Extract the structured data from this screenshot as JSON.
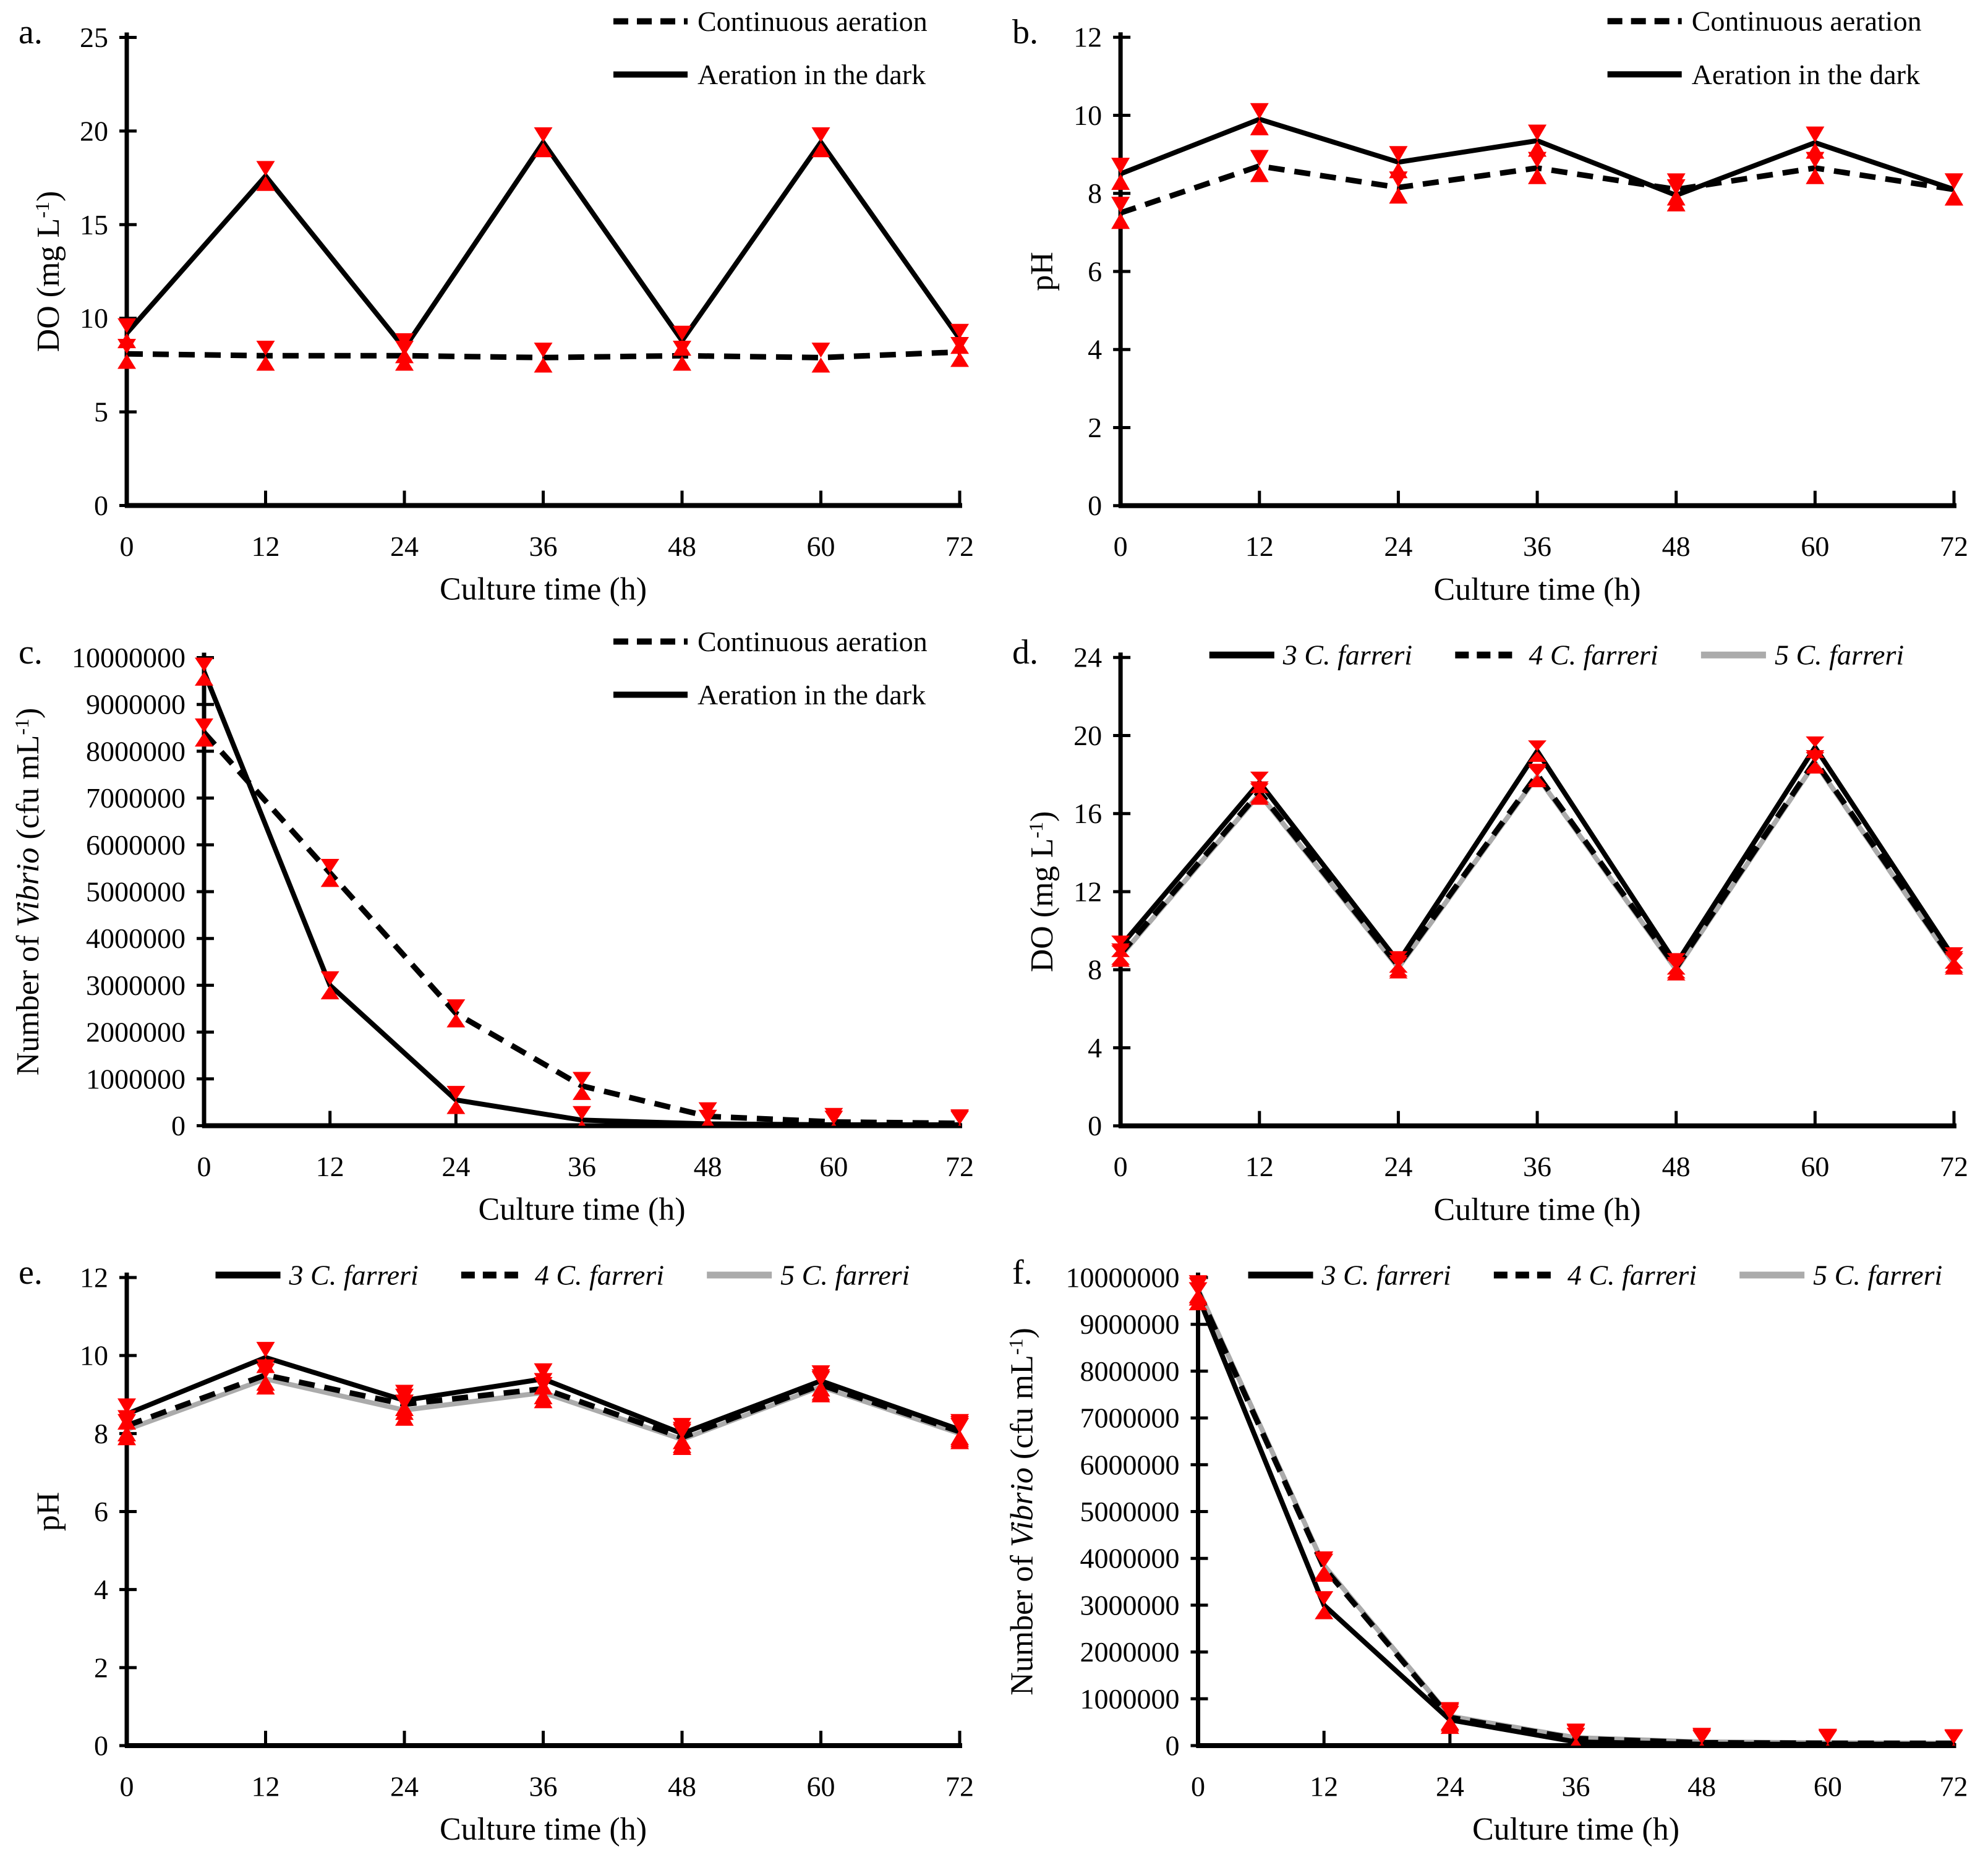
{
  "figure": {
    "background": "#ffffff",
    "axis_color": "#000000",
    "error_marker_color": "#fe0000",
    "gray_series_color": "#ababab"
  },
  "chart_data": [
    {
      "panel_label": "a.",
      "type": "line",
      "xlabel": "Culture time (h)",
      "ylabel_segments": [
        {
          "text": "DO (mg L"
        },
        {
          "text": "-1",
          "sup": true
        },
        {
          "text": ")"
        }
      ],
      "x": [
        0,
        12,
        24,
        36,
        48,
        60,
        72
      ],
      "xlim": [
        0,
        72
      ],
      "xticks": [
        0,
        12,
        24,
        36,
        48,
        60,
        72
      ],
      "ylim": [
        0,
        25
      ],
      "yticks": [
        0,
        5,
        10,
        15,
        20,
        25
      ],
      "legend": {
        "layout": "vertical"
      },
      "error_marker_color": "#fe0000",
      "series": [
        {
          "name": "Continuous aeration",
          "dash": "dashed",
          "color": "#000000",
          "italic": false,
          "err": 0.8,
          "values": [
            8.1,
            8.0,
            8.0,
            7.9,
            8.0,
            7.9,
            8.2
          ]
        },
        {
          "name": "Aeration in the dark",
          "dash": "solid",
          "color": "#000000",
          "italic": false,
          "err": 0.8,
          "values": [
            9.2,
            17.6,
            8.4,
            19.4,
            8.8,
            19.4,
            8.9
          ]
        }
      ]
    },
    {
      "panel_label": "b.",
      "type": "line",
      "xlabel": "Culture time (h)",
      "ylabel_segments": [
        {
          "text": "pH"
        }
      ],
      "x": [
        0,
        12,
        24,
        36,
        48,
        60,
        72
      ],
      "xlim": [
        0,
        72
      ],
      "xticks": [
        0,
        12,
        24,
        36,
        48,
        60,
        72
      ],
      "ylim": [
        0,
        12
      ],
      "yticks": [
        0,
        2,
        4,
        6,
        8,
        10,
        12
      ],
      "legend": {
        "layout": "vertical"
      },
      "error_marker_color": "#fe0000",
      "series": [
        {
          "name": "Continuous aeration",
          "dash": "dashed",
          "color": "#000000",
          "italic": false,
          "err": 0.45,
          "values": [
            7.5,
            8.7,
            8.15,
            8.65,
            8.1,
            8.65,
            8.1
          ]
        },
        {
          "name": "Aeration in the dark",
          "dash": "solid",
          "color": "#000000",
          "italic": false,
          "err": 0.45,
          "values": [
            8.5,
            9.9,
            8.8,
            9.35,
            7.95,
            9.3,
            8.1
          ]
        }
      ]
    },
    {
      "panel_label": "c.",
      "type": "line",
      "xlabel": "Culture time (h)",
      "ylabel_segments": [
        {
          "text": "Number of "
        },
        {
          "text": "Vibrio",
          "italic": true
        },
        {
          "text": " (cfu mL"
        },
        {
          "text": "-1",
          "sup": true
        },
        {
          "text": ")"
        }
      ],
      "x": [
        0,
        12,
        24,
        36,
        48,
        60,
        72
      ],
      "xlim": [
        0,
        72
      ],
      "xticks": [
        0,
        12,
        24,
        36,
        48,
        60,
        72
      ],
      "ylim": [
        0,
        10000000
      ],
      "yticks": [
        0,
        1000000,
        2000000,
        3000000,
        4000000,
        5000000,
        6000000,
        7000000,
        8000000,
        9000000,
        10000000
      ],
      "legend": {
        "layout": "vertical"
      },
      "error_marker_color": "#fe0000",
      "series": [
        {
          "name": "Continuous aeration",
          "dash": "dashed",
          "color": "#000000",
          "italic": false,
          "err": 300000,
          "values": [
            8400000,
            5400000,
            2400000,
            850000,
            200000,
            80000,
            50000
          ]
        },
        {
          "name": "Aeration in the dark",
          "dash": "solid",
          "color": "#000000",
          "italic": false,
          "err": 300000,
          "values": [
            9700000,
            3000000,
            550000,
            120000,
            40000,
            20000,
            20000
          ]
        }
      ]
    },
    {
      "panel_label": "d.",
      "type": "line",
      "xlabel": "Culture time (h)",
      "ylabel_segments": [
        {
          "text": "DO (mg L"
        },
        {
          "text": "-1",
          "sup": true
        },
        {
          "text": ")"
        }
      ],
      "x": [
        0,
        12,
        24,
        36,
        48,
        60,
        72
      ],
      "xlim": [
        0,
        72
      ],
      "xticks": [
        0,
        12,
        24,
        36,
        48,
        60,
        72
      ],
      "ylim": [
        0,
        24
      ],
      "yticks": [
        0,
        4,
        8,
        12,
        16,
        20,
        24
      ],
      "legend": {
        "layout": "horizontal"
      },
      "error_marker_color": "#fe0000",
      "series": [
        {
          "name": "3 C. farreri",
          "dash": "solid",
          "color": "#000000",
          "italic": true,
          "err": 0.55,
          "values": [
            9.2,
            17.6,
            8.4,
            19.2,
            8.3,
            19.4,
            8.6
          ]
        },
        {
          "name": "4 C. farreri",
          "dash": "dashed",
          "color": "#000000",
          "italic": true,
          "err": 0.55,
          "values": [
            8.8,
            17.1,
            8.2,
            18.0,
            8.1,
            18.7,
            8.4
          ]
        },
        {
          "name": "5 C. farreri",
          "dash": "solid",
          "color": "#ababab",
          "italic": true,
          "err": 0.55,
          "values": [
            8.7,
            17.0,
            8.1,
            17.9,
            8.0,
            18.6,
            8.3
          ]
        }
      ]
    },
    {
      "panel_label": "e.",
      "type": "line",
      "xlabel": "Culture time (h)",
      "ylabel_segments": [
        {
          "text": "pH"
        }
      ],
      "x": [
        0,
        12,
        24,
        36,
        48,
        60,
        72
      ],
      "xlim": [
        0,
        72
      ],
      "xticks": [
        0,
        12,
        24,
        36,
        48,
        60,
        72
      ],
      "ylim": [
        0,
        12
      ],
      "yticks": [
        0,
        2,
        4,
        6,
        8,
        10,
        12
      ],
      "legend": {
        "layout": "horizontal"
      },
      "error_marker_color": "#fe0000",
      "series": [
        {
          "name": "3 C. farreri",
          "dash": "solid",
          "color": "#000000",
          "italic": true,
          "err": 0.4,
          "values": [
            8.5,
            9.95,
            8.85,
            9.4,
            8.0,
            9.35,
            8.1
          ]
        },
        {
          "name": "4 C. farreri",
          "dash": "dashed",
          "color": "#000000",
          "italic": true,
          "err": 0.4,
          "values": [
            8.2,
            9.5,
            8.75,
            9.15,
            7.9,
            9.25,
            8.05
          ]
        },
        {
          "name": "5 C. farreri",
          "dash": "solid",
          "color": "#ababab",
          "italic": true,
          "err": 0.4,
          "values": [
            8.1,
            9.4,
            8.6,
            9.05,
            7.85,
            9.2,
            8.0
          ]
        }
      ]
    },
    {
      "panel_label": "f.",
      "type": "line",
      "xlabel": "Culture time (h)",
      "ylabel_segments": [
        {
          "text": "Number of "
        },
        {
          "text": "Vibrio",
          "italic": true
        },
        {
          "text": " (cfu mL"
        },
        {
          "text": "-1",
          "sup": true
        },
        {
          "text": ")"
        }
      ],
      "x": [
        0,
        12,
        24,
        36,
        48,
        60,
        72
      ],
      "xlim": [
        0,
        72
      ],
      "xticks": [
        0,
        12,
        24,
        36,
        48,
        60,
        72
      ],
      "ylim": [
        0,
        10000000
      ],
      "yticks": [
        0,
        1000000,
        2000000,
        3000000,
        4000000,
        5000000,
        6000000,
        7000000,
        8000000,
        9000000,
        10000000
      ],
      "legend": {
        "layout": "horizontal"
      },
      "error_marker_color": "#fe0000",
      "series": [
        {
          "name": "3 C. farreri",
          "dash": "solid",
          "color": "#000000",
          "italic": true,
          "err": 300000,
          "values": [
            9600000,
            3000000,
            550000,
            80000,
            30000,
            30000,
            30000
          ]
        },
        {
          "name": "4 C. farreri",
          "dash": "dashed",
          "color": "#000000",
          "italic": true,
          "err": 300000,
          "values": [
            9700000,
            3800000,
            600000,
            150000,
            60000,
            50000,
            50000
          ]
        },
        {
          "name": "5 C. farreri",
          "dash": "solid",
          "color": "#ababab",
          "italic": true,
          "err": 300000,
          "values": [
            9750000,
            3850000,
            630000,
            170000,
            80000,
            60000,
            50000
          ]
        }
      ]
    }
  ]
}
